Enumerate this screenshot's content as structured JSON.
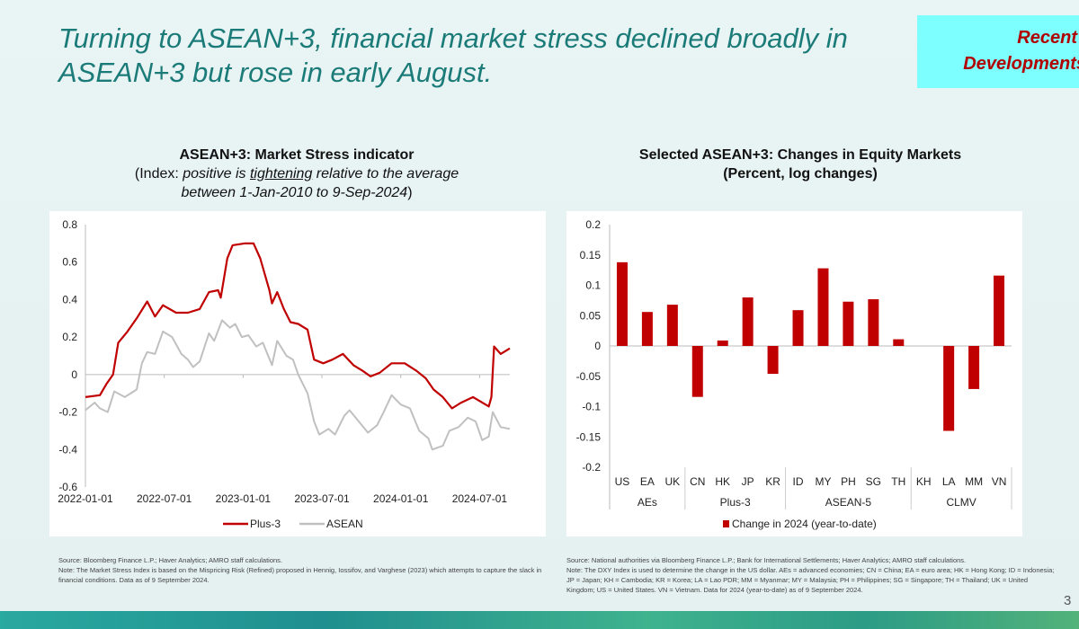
{
  "slide": {
    "title_line1": "Turning to ASEAN+3, financial market stress declined broadly in",
    "title_line2": "ASEAN+3 but rose in early August.",
    "tag_line1": "Recent",
    "tag_line2": "Developments",
    "page_number": "3"
  },
  "left": {
    "title": "ASEAN+3: Market Stress indicator",
    "subtitle_prefix": "(Index: ",
    "subtitle_italic1": "positive is ",
    "subtitle_underlined": "tightening",
    "subtitle_italic2": " relative to the average",
    "subtitle_line2": "between 1-Jan-2010 to 9-Sep-2024",
    "subtitle_suffix": ")",
    "source": "Source: Bloomberg Finance L.P.; Haver Analytics; AMRO staff calculations.",
    "note": "Note: The Market Stress Index is based on the Mispricing Risk (Refined) proposed in Hennig, Iossifov, and Varghese (2023) which attempts to capture the slack in financial conditions. Data as of 9 September 2024."
  },
  "right": {
    "title": "Selected ASEAN+3: Changes in Equity Markets",
    "subtitle": "(Percent, log changes)",
    "source": "Source: National authorities via Bloomberg Finance L.P.; Bank for International Settlements; Haver Analytics; AMRO staff calculations.",
    "note": "Note: The DXY Index is used to determine the change in the US dollar. AEs = advanced economies; CN = China; EA = euro area; HK = Hong Kong; ID = Indonesia; JP = Japan; KH = Cambodia; KR = Korea; LA = Lao PDR; MM = Myanmar; MY = Malaysia; PH = Philippines; SG = Singapore; TH = Thailand; UK = United Kingdom; US = United States. VN = Vietnam. Data for 2024 (year-to-date) as of 9 September 2024."
  },
  "chart_data": [
    {
      "type": "line",
      "title": "ASEAN+3: Market Stress indicator",
      "x_unit": "months since 2022-01-01",
      "xlim": [
        0,
        32.3
      ],
      "ylim": [
        -0.6,
        0.8
      ],
      "yticks": [
        "0.8",
        "0.6",
        "0.4",
        "0.2",
        "0",
        "-0.2",
        "-0.4",
        "-0.6"
      ],
      "ytick_values": [
        0.8,
        0.6,
        0.4,
        0.2,
        0,
        -0.2,
        -0.4,
        -0.6
      ],
      "xticks": [
        "2022-01-01",
        "2022-07-01",
        "2023-01-01",
        "2023-07-01",
        "2024-01-01",
        "2024-07-01"
      ],
      "xtick_values": [
        0,
        6,
        12,
        18,
        24,
        30
      ],
      "legend": "bottom",
      "series": [
        {
          "name": "Plus-3",
          "color": "#c00000",
          "points": [
            [
              0,
              -0.12
            ],
            [
              1.1,
              -0.11
            ],
            [
              1.6,
              -0.05
            ],
            [
              2.1,
              0.0
            ],
            [
              2.5,
              0.17
            ],
            [
              3.2,
              0.23
            ],
            [
              3.9,
              0.3
            ],
            [
              4.7,
              0.39
            ],
            [
              5.3,
              0.31
            ],
            [
              5.9,
              0.37
            ],
            [
              6.9,
              0.33
            ],
            [
              7.8,
              0.33
            ],
            [
              8.7,
              0.35
            ],
            [
              9.4,
              0.44
            ],
            [
              10.1,
              0.45
            ],
            [
              10.3,
              0.41
            ],
            [
              10.8,
              0.62
            ],
            [
              11.2,
              0.69
            ],
            [
              12.1,
              0.7
            ],
            [
              12.8,
              0.7
            ],
            [
              13.3,
              0.62
            ],
            [
              14.0,
              0.45
            ],
            [
              14.2,
              0.38
            ],
            [
              14.6,
              0.44
            ],
            [
              15.1,
              0.35
            ],
            [
              15.6,
              0.28
            ],
            [
              16.2,
              0.27
            ],
            [
              16.9,
              0.24
            ],
            [
              17.4,
              0.08
            ],
            [
              18.1,
              0.06
            ],
            [
              18.8,
              0.08
            ],
            [
              19.6,
              0.11
            ],
            [
              20.4,
              0.05
            ],
            [
              21.1,
              0.02
            ],
            [
              21.7,
              -0.01
            ],
            [
              22.4,
              0.01
            ],
            [
              23.3,
              0.06
            ],
            [
              24.3,
              0.06
            ],
            [
              25.2,
              0.02
            ],
            [
              25.9,
              -0.02
            ],
            [
              26.5,
              -0.08
            ],
            [
              27.2,
              -0.12
            ],
            [
              27.9,
              -0.18
            ],
            [
              28.6,
              -0.15
            ],
            [
              29.5,
              -0.12
            ],
            [
              30.7,
              -0.17
            ],
            [
              30.9,
              -0.12
            ],
            [
              31.1,
              0.15
            ],
            [
              31.6,
              0.11
            ],
            [
              32.3,
              0.14
            ]
          ]
        },
        {
          "name": "ASEAN",
          "color": "#c0c0c0",
          "points": [
            [
              0,
              -0.19
            ],
            [
              0.7,
              -0.15
            ],
            [
              1.1,
              -0.18
            ],
            [
              1.7,
              -0.2
            ],
            [
              2.2,
              -0.09
            ],
            [
              3.0,
              -0.12
            ],
            [
              3.9,
              -0.08
            ],
            [
              4.3,
              0.06
            ],
            [
              4.7,
              0.12
            ],
            [
              5.3,
              0.11
            ],
            [
              5.9,
              0.23
            ],
            [
              6.6,
              0.2
            ],
            [
              7.3,
              0.11
            ],
            [
              7.8,
              0.08
            ],
            [
              8.2,
              0.04
            ],
            [
              8.7,
              0.07
            ],
            [
              9.4,
              0.22
            ],
            [
              9.8,
              0.18
            ],
            [
              10.4,
              0.29
            ],
            [
              11.0,
              0.25
            ],
            [
              11.4,
              0.27
            ],
            [
              11.9,
              0.2
            ],
            [
              12.4,
              0.21
            ],
            [
              13.0,
              0.15
            ],
            [
              13.5,
              0.17
            ],
            [
              14.2,
              0.05
            ],
            [
              14.6,
              0.18
            ],
            [
              15.3,
              0.1
            ],
            [
              15.8,
              0.08
            ],
            [
              16.2,
              0.0
            ],
            [
              16.9,
              -0.1
            ],
            [
              17.4,
              -0.25
            ],
            [
              17.8,
              -0.32
            ],
            [
              18.5,
              -0.29
            ],
            [
              19.0,
              -0.32
            ],
            [
              19.7,
              -0.22
            ],
            [
              20.1,
              -0.19
            ],
            [
              20.8,
              -0.25
            ],
            [
              21.5,
              -0.31
            ],
            [
              22.2,
              -0.27
            ],
            [
              22.7,
              -0.2
            ],
            [
              23.3,
              -0.11
            ],
            [
              24.0,
              -0.16
            ],
            [
              24.7,
              -0.18
            ],
            [
              25.4,
              -0.3
            ],
            [
              26.1,
              -0.34
            ],
            [
              26.4,
              -0.4
            ],
            [
              27.2,
              -0.38
            ],
            [
              27.7,
              -0.3
            ],
            [
              28.4,
              -0.28
            ],
            [
              29.1,
              -0.23
            ],
            [
              29.7,
              -0.25
            ],
            [
              30.2,
              -0.35
            ],
            [
              30.7,
              -0.33
            ],
            [
              31.0,
              -0.2
            ],
            [
              31.6,
              -0.28
            ],
            [
              32.3,
              -0.29
            ]
          ]
        }
      ]
    },
    {
      "type": "bar",
      "title": "Selected ASEAN+3: Changes in Equity Markets",
      "ylabel": "Percent, log changes",
      "ylim": [
        -0.2,
        0.2
      ],
      "yticks": [
        "0.2",
        "0.15",
        "0.1",
        "0.05",
        "0",
        "-0.05",
        "-0.1",
        "-0.15",
        "-0.2"
      ],
      "ytick_values": [
        0.2,
        0.15,
        0.1,
        0.05,
        0,
        -0.05,
        -0.1,
        -0.15,
        -0.2
      ],
      "categories": [
        "US",
        "EA",
        "UK",
        "CN",
        "HK",
        "JP",
        "KR",
        "ID",
        "MY",
        "PH",
        "SG",
        "TH",
        "KH",
        "LA",
        "MM",
        "VN"
      ],
      "groups": [
        {
          "label": "AEs",
          "size": 3
        },
        {
          "label": "Plus-3",
          "size": 4
        },
        {
          "label": "ASEAN-5",
          "size": 5
        },
        {
          "label": "CLMV",
          "size": 4
        }
      ],
      "series": [
        {
          "name": "Change in 2024 (year-to-date)",
          "color": "#c00000",
          "values": [
            0.138,
            0.056,
            0.068,
            -0.084,
            0.009,
            0.08,
            -0.046,
            0.059,
            0.128,
            0.073,
            0.077,
            0.011,
            0,
            -0.14,
            -0.071,
            0.116
          ]
        }
      ],
      "legend": "bottom"
    }
  ]
}
